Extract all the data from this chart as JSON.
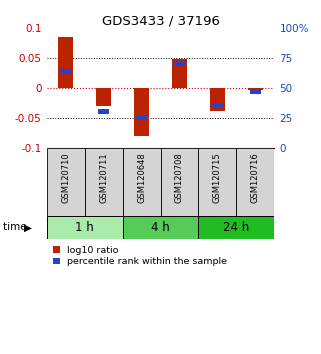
{
  "title": "GDS3433 / 37196",
  "samples": [
    "GSM120710",
    "GSM120711",
    "GSM120648",
    "GSM120708",
    "GSM120715",
    "GSM120716"
  ],
  "log10_ratio": [
    0.085,
    -0.03,
    -0.08,
    0.048,
    -0.038,
    -0.003
  ],
  "percentile_rank": [
    64,
    30,
    25,
    70,
    35,
    47
  ],
  "groups": [
    {
      "label": "1 h",
      "indices": [
        0,
        1
      ],
      "color": "#aaeaaa"
    },
    {
      "label": "4 h",
      "indices": [
        2,
        3
      ],
      "color": "#55cc55"
    },
    {
      "label": "24 h",
      "indices": [
        4,
        5
      ],
      "color": "#22bb22"
    }
  ],
  "ylim_left": [
    -0.1,
    0.1
  ],
  "ylim_right": [
    0,
    100
  ],
  "yticks_left": [
    -0.1,
    -0.05,
    0,
    0.05,
    0.1
  ],
  "yticks_right": [
    0,
    25,
    50,
    75,
    100
  ],
  "bar_color_red": "#bb2200",
  "bar_color_blue": "#2244cc",
  "hline_color": "#cc0000",
  "bg_color": "#ffffff",
  "bar_width": 0.4,
  "blue_bar_width": 0.28
}
